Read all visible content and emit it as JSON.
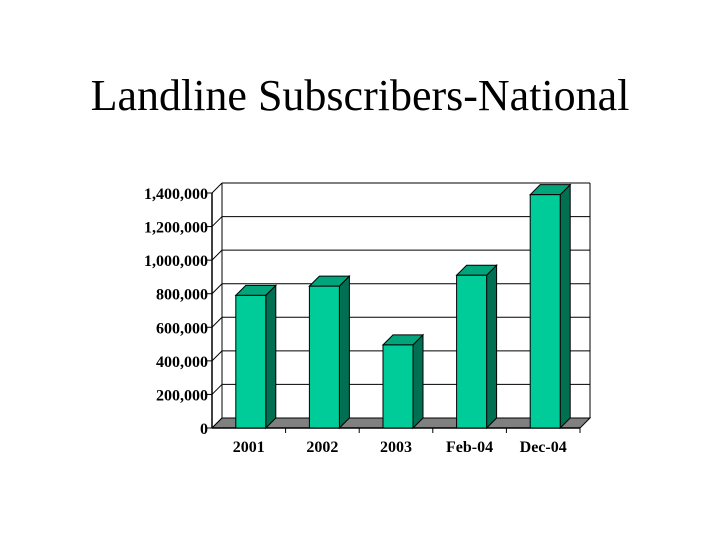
{
  "slide": {
    "title": "Landline Subscribers-National"
  },
  "chart_data": {
    "type": "bar",
    "title": "",
    "xlabel": "",
    "ylabel": "",
    "categories": [
      "2001",
      "2002",
      "2003",
      "Feb-04",
      "Dec-04"
    ],
    "values": [
      790000,
      845000,
      495000,
      910000,
      1390000
    ],
    "ylim": [
      0,
      1400000
    ],
    "yticks": [
      0,
      200000,
      400000,
      600000,
      800000,
      1000000,
      1200000,
      1400000
    ],
    "ytick_labels": [
      "0",
      "200,000",
      "400,000",
      "600,000",
      "800,000",
      "1,000,000",
      "1,200,000",
      "1,400,000"
    ],
    "grid": true,
    "legend": "none",
    "colors": {
      "bar_front": "#00cc99",
      "bar_side": "#006f52",
      "bar_top": "#00a57c",
      "floor": "#808080",
      "grid": "#000000"
    }
  }
}
